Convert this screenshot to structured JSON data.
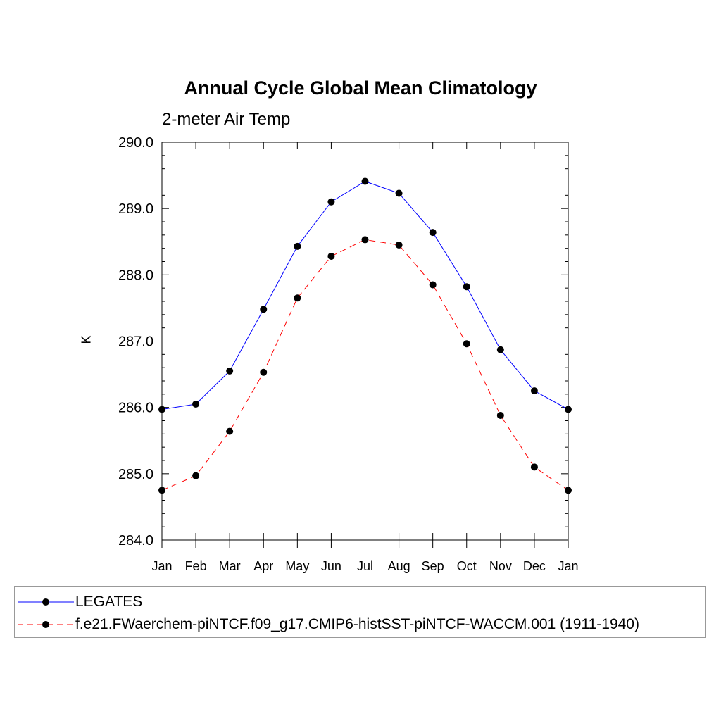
{
  "chart_data": {
    "type": "line",
    "title": "Annual Cycle Global Mean Climatology",
    "subtitle": "2-meter Air Temp",
    "xlabel": "",
    "ylabel": "K",
    "categories": [
      "Jan",
      "Feb",
      "Mar",
      "Apr",
      "May",
      "Jun",
      "Jul",
      "Aug",
      "Sep",
      "Oct",
      "Nov",
      "Dec",
      "Jan"
    ],
    "ylim": [
      284.0,
      290.0
    ],
    "yticks": [
      "284.0",
      "285.0",
      "286.0",
      "287.0",
      "288.0",
      "289.0",
      "290.0"
    ],
    "grid": false,
    "legend_position": "bottom",
    "series": [
      {
        "name": "LEGATES",
        "color": "#0000ff",
        "style": "solid",
        "values": [
          285.97,
          286.05,
          286.55,
          287.48,
          288.43,
          289.1,
          289.41,
          289.23,
          288.64,
          287.82,
          286.87,
          286.25,
          285.97
        ]
      },
      {
        "name": "f.e21.FWaerchem-piNTCF.f09_g17.CMIP6-histSST-piNTCF-WACCM.001 (1911-1940)",
        "color": "#ff0000",
        "style": "dashed",
        "values": [
          284.75,
          284.97,
          285.64,
          286.53,
          287.65,
          288.28,
          288.53,
          288.45,
          287.85,
          286.96,
          285.88,
          285.1,
          284.75
        ]
      }
    ]
  }
}
